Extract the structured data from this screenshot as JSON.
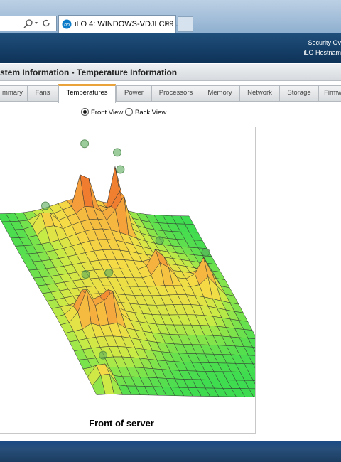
{
  "browser": {
    "tab_title": "iLO 4: WINDOWS-VDJLCF9 ...",
    "tab_close": "×"
  },
  "header": {
    "line1": "Security Ov",
    "line2": "iLO Hostnam"
  },
  "page": {
    "title": "stem Information - Temperature Information",
    "tabs": [
      "mmary",
      "Fans",
      "Temperatures",
      "Power",
      "Processors",
      "Memory",
      "Network",
      "Storage",
      "Firmw"
    ],
    "active_tab": 2,
    "view_options": [
      "Front View",
      "Back View"
    ],
    "selected_view": 0,
    "caption": "Front of server"
  }
}
